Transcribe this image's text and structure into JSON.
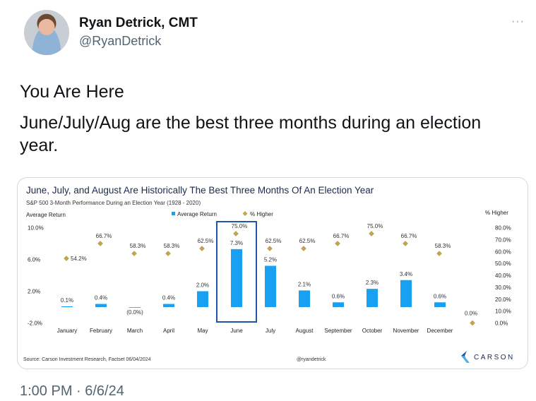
{
  "author": {
    "name": "Ryan Detrick, CMT",
    "handle": "@RyanDetrick"
  },
  "more_icon": "more-horizontal-icon",
  "tweet": {
    "line1": "You Are Here",
    "line2": "June/July/Aug are the best three months during an election year."
  },
  "timestamp": "1:00 PM · 6/6/24",
  "chart_data": {
    "type": "bar",
    "title": "June, July, and August Are Historically The Best Three Months Of An Election Year",
    "subtitle": "S&P 500 3-Month Performance During an Election Year (1928 - 2020)",
    "ylabel": "Average Return",
    "ylabel_right": "% Higher",
    "legend": [
      "Average Return",
      "% Higher"
    ],
    "legend_position": "top-center",
    "ylim": [
      -2,
      10
    ],
    "ylim_right": [
      0,
      80
    ],
    "yticks": [
      10,
      6,
      2,
      -2
    ],
    "yticks_labels": [
      "10.0%",
      "6.0%",
      "2.0%",
      "-2.0%"
    ],
    "yticks_right": [
      80,
      70,
      60,
      50,
      40,
      30,
      20,
      10,
      0
    ],
    "yticks_right_labels": [
      "80.0%",
      "70.0%",
      "60.0%",
      "50.0%",
      "40.0%",
      "30.0%",
      "20.0%",
      "10.0%",
      "0.0%"
    ],
    "categories": [
      "January",
      "February",
      "March",
      "April",
      "May",
      "June",
      "July",
      "August",
      "September",
      "October",
      "November",
      "December"
    ],
    "series": [
      {
        "name": "Average Return",
        "values": [
          0.1,
          0.4,
          0.0,
          0.4,
          2.0,
          7.3,
          5.2,
          2.1,
          0.6,
          2.3,
          3.4,
          0.6
        ],
        "labels": [
          "0.1%",
          "0.4%",
          "(0.0%)",
          "0.4%",
          "2.0%",
          "7.3%",
          "5.2%",
          "2.1%",
          "0.6%",
          "2.3%",
          "3.4%",
          "0.6%"
        ]
      },
      {
        "name": "% Higher",
        "values": [
          54.2,
          66.7,
          58.3,
          58.3,
          62.5,
          75.0,
          62.5,
          62.5,
          66.7,
          75.0,
          66.7,
          58.3
        ],
        "labels": [
          "54.2%",
          "66.7%",
          "58.3%",
          "58.3%",
          "62.5%",
          "75.0%",
          "62.5%",
          "62.5%",
          "66.7%",
          "75.0%",
          "66.7%",
          "58.3%"
        ]
      }
    ],
    "extra_point": {
      "value": 0.0,
      "label": "0.0%"
    },
    "highlight": "June",
    "source": "Source: Carson Investment Research, Factset 06/04/2024",
    "credit": "@ryandetrick",
    "brand": "CARSON",
    "colors": {
      "bar": "#1aa0f0",
      "diamond": "#c6a64a",
      "highlight": "#1e56a8",
      "title": "#1b2a4a"
    }
  }
}
